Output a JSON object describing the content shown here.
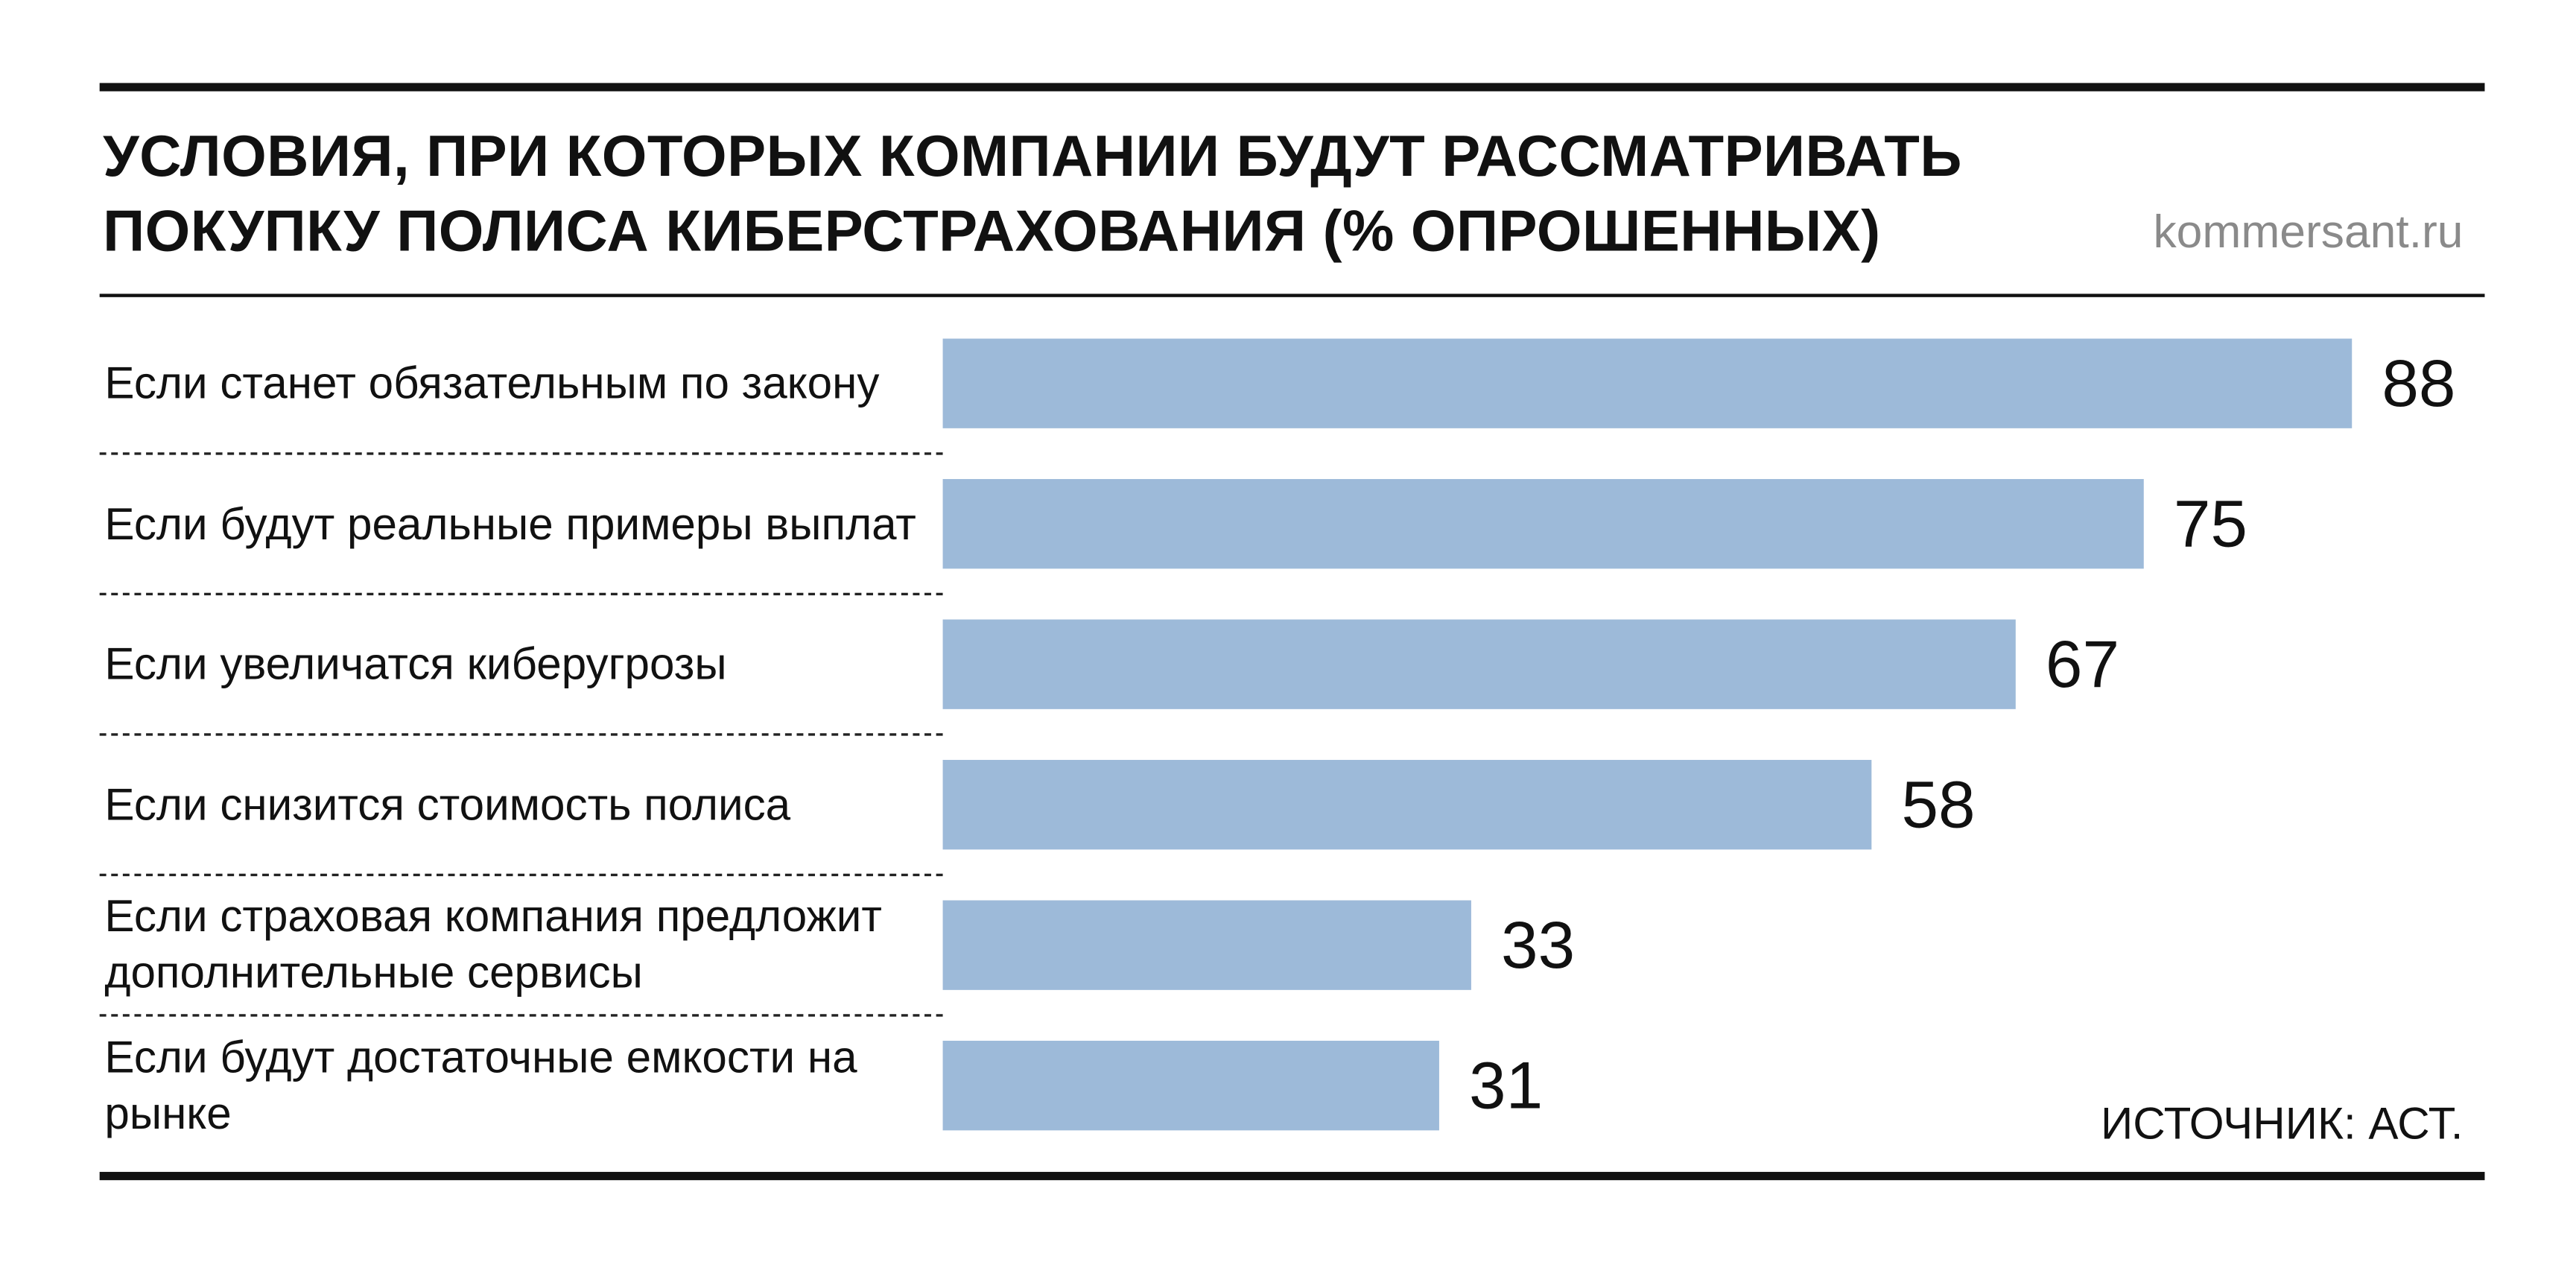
{
  "chart_data": {
    "type": "bar",
    "orientation": "horizontal",
    "title": "УСЛОВИЯ, ПРИ КОТОРЫХ КОМПАНИИ БУДУТ РАССМАТРИВАТЬ ПОКУПКУ ПОЛИСА КИБЕРСТРАХОВАНИЯ (% ОПРОШЕННЫХ)",
    "brand": "kommersant.ru",
    "source": "ИСТОЧНИК: АСТ.",
    "categories": [
      "Если станет обязательным по закону",
      "Если будут реальные примеры выплат",
      "Если увеличатся киберугрозы",
      "Если снизится стоимость полиса",
      "Если страховая компания предложит дополнительные сервисы",
      "Если будут достаточные емкости на рынке"
    ],
    "values": [
      88,
      75,
      67,
      58,
      33,
      31
    ],
    "color": "#9dbad9"
  }
}
